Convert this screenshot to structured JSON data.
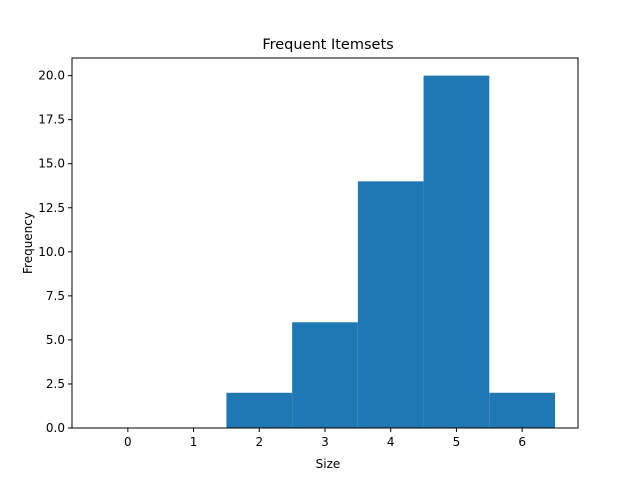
{
  "chart_data": {
    "type": "bar",
    "title": "Frequent Itemsets",
    "xlabel": "Size",
    "ylabel": "Frequency",
    "categories": [
      0,
      1,
      2,
      3,
      4,
      5,
      6
    ],
    "values": [
      0,
      0,
      2,
      6,
      14,
      20,
      2
    ],
    "x_tick_labels": [
      "0",
      "1",
      "2",
      "3",
      "4",
      "5",
      "6"
    ],
    "y_ticks": [
      0,
      2.5,
      5,
      7.5,
      10,
      12.5,
      15,
      17.5,
      20
    ],
    "y_tick_labels": [
      "0.0",
      "2.5",
      "5.0",
      "7.5",
      "10.0",
      "12.5",
      "15.0",
      "17.5",
      "20.0"
    ],
    "xlim": [
      -0.85,
      6.85
    ],
    "ylim": [
      0,
      21
    ],
    "bar_color": "#1f77b4",
    "grid": false,
    "legend": "none"
  }
}
